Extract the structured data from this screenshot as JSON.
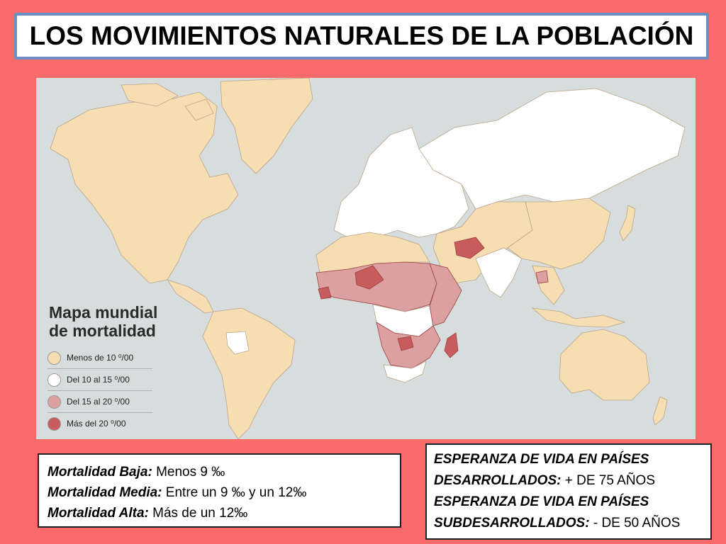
{
  "title": "LOS MOVIMIENTOS NATURALES DE LA POBLACIÓN",
  "map": {
    "legend_title_line1": "Mapa mundial",
    "legend_title_line2": "de mortalidad",
    "legend": [
      {
        "label": "Menos de 10 ⁰/00",
        "color": "#f7ddb2"
      },
      {
        "label": "Del 10 al 15 ⁰/00",
        "color": "#ffffff"
      },
      {
        "label": "Del 15 al 20 ⁰/00",
        "color": "#dca0a0"
      },
      {
        "label": "Más del 20 ⁰/00",
        "color": "#c85c5c"
      }
    ],
    "ocean_color": "#d7dcdc"
  },
  "mortality_box": {
    "line1_label": "Mortalidad Baja:",
    "line1_value": " Menos 9 ‰",
    "line2_label": "Mortalidad Media:",
    "line2_value": " Entre un 9 ‰ y un 12‰",
    "line3_label": "Mortalidad Alta:",
    "line3_value": " Más de un 12‰"
  },
  "life_expectancy_box": {
    "line1": "ESPERANZA DE VIDA EN PAÍSES",
    "line2_label": "DESARROLLADOS:",
    "line2_value": " + DE 75 AÑOS",
    "line3": "ESPERANZA DE VIDA EN PAÍSES",
    "line4_label": "SUBDESARROLLADOS:",
    "line4_value": " - DE 50 AÑOS"
  }
}
